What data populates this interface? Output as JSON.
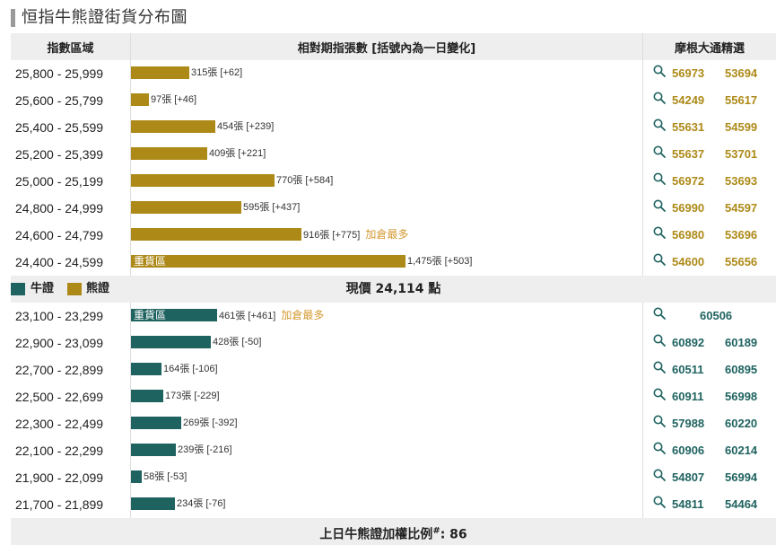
{
  "title": "恒指牛熊證街貨分布圖",
  "headers": {
    "range": "指數區域",
    "quantity": "相對期指張數 [括號內為一日變化]",
    "picks": "摩根大通精選"
  },
  "legend": {
    "bull": "牛證",
    "bear": "熊證",
    "bull_color": "#1f6360",
    "bear_color": "#ad8a18"
  },
  "current_price": {
    "label": "現價",
    "value": "24,114",
    "unit": "點"
  },
  "bear_rows": [
    {
      "range": "25,800 - 25,999",
      "qty": "315張 [+62]",
      "qty_value": 315,
      "note": "",
      "tag": "",
      "picks": [
        "56973",
        "53694"
      ]
    },
    {
      "range": "25,600 - 25,799",
      "qty": "97張 [+46]",
      "qty_value": 97,
      "note": "",
      "tag": "",
      "picks": [
        "54249",
        "55617"
      ]
    },
    {
      "range": "25,400 - 25,599",
      "qty": "454張 [+239]",
      "qty_value": 454,
      "note": "",
      "tag": "",
      "picks": [
        "55631",
        "54599"
      ]
    },
    {
      "range": "25,200 - 25,399",
      "qty": "409張 [+221]",
      "qty_value": 409,
      "note": "",
      "tag": "",
      "picks": [
        "55637",
        "53701"
      ]
    },
    {
      "range": "25,000 - 25,199",
      "qty": "770張 [+584]",
      "qty_value": 770,
      "note": "",
      "tag": "",
      "picks": [
        "56972",
        "53693"
      ]
    },
    {
      "range": "24,800 - 24,999",
      "qty": "595張 [+437]",
      "qty_value": 595,
      "note": "",
      "tag": "",
      "picks": [
        "56990",
        "54597"
      ]
    },
    {
      "range": "24,600 - 24,799",
      "qty": "916張 [+775]",
      "qty_value": 916,
      "note": "加倉最多",
      "tag": "",
      "picks": [
        "56980",
        "53696"
      ]
    },
    {
      "range": "24,400 - 24,599",
      "qty": "1,475張 [+503]",
      "qty_value": 1475,
      "note": "",
      "tag": "重貨區",
      "picks": [
        "54600",
        "55656"
      ]
    }
  ],
  "bull_rows": [
    {
      "range": "23,100 - 23,299",
      "qty": "461張 [+461]",
      "qty_value": 461,
      "note": "加倉最多",
      "tag": "重貨區",
      "picks": [
        "60506"
      ]
    },
    {
      "range": "22,900 - 23,099",
      "qty": "428張 [-50]",
      "qty_value": 428,
      "note": "",
      "tag": "",
      "picks": [
        "60892",
        "60189"
      ]
    },
    {
      "range": "22,700 - 22,899",
      "qty": "164張 [-106]",
      "qty_value": 164,
      "note": "",
      "tag": "",
      "picks": [
        "60511",
        "60895"
      ]
    },
    {
      "range": "22,500 - 22,699",
      "qty": "173張 [-229]",
      "qty_value": 173,
      "note": "",
      "tag": "",
      "picks": [
        "60911",
        "56998"
      ]
    },
    {
      "range": "22,300 - 22,499",
      "qty": "269張 [-392]",
      "qty_value": 269,
      "note": "",
      "tag": "",
      "picks": [
        "57988",
        "60220"
      ]
    },
    {
      "range": "22,100 - 22,299",
      "qty": "239張 [-216]",
      "qty_value": 239,
      "note": "",
      "tag": "",
      "picks": [
        "60906",
        "60214"
      ]
    },
    {
      "range": "21,900 - 22,099",
      "qty": "58張 [-53]",
      "qty_value": 58,
      "note": "",
      "tag": "",
      "picks": [
        "54807",
        "56994"
      ]
    },
    {
      "range": "21,700 - 21,899",
      "qty": "234張 [-76]",
      "qty_value": 234,
      "note": "",
      "tag": "",
      "picks": [
        "54811",
        "54464"
      ]
    }
  ],
  "footer": {
    "label": "上日牛熊證加權比例",
    "mark": "#",
    "suffix": ": 86"
  }
}
